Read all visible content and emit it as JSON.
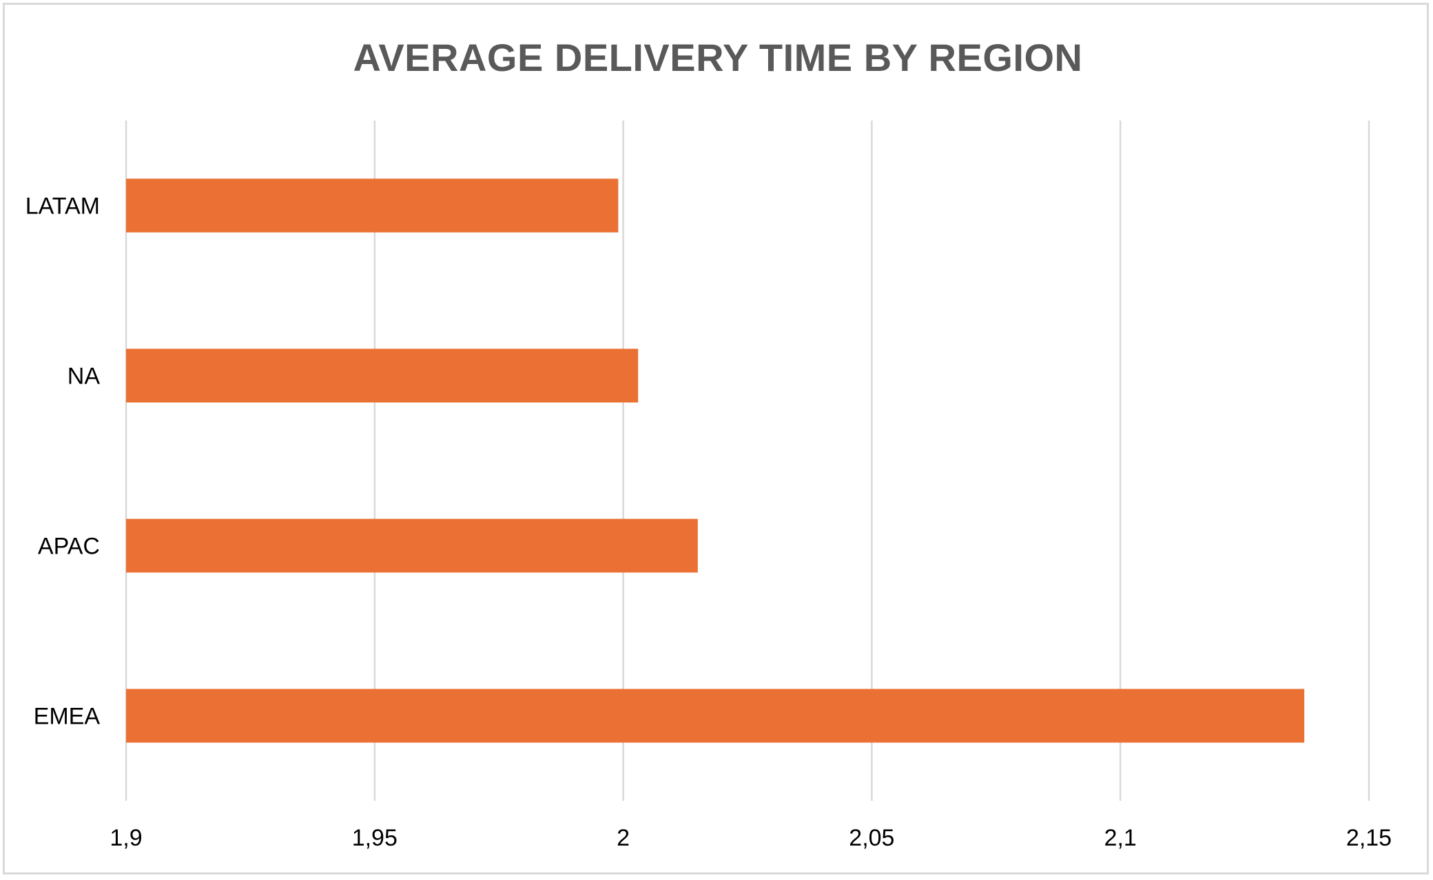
{
  "chart_data": {
    "type": "bar",
    "orientation": "horizontal",
    "title": "AVERAGE DELIVERY TIME BY REGION",
    "xlabel": "",
    "ylabel": "",
    "categories": [
      "LATAM",
      "NA",
      "APAC",
      "EMEA"
    ],
    "values": [
      1.999,
      2.003,
      2.015,
      2.137
    ],
    "xlim": [
      1.9,
      2.15
    ],
    "x_ticks": [
      1.9,
      1.95,
      2.0,
      2.05,
      2.1,
      2.15
    ],
    "x_tick_labels": [
      "1,9",
      "1,95",
      "2",
      "2,05",
      "2,1",
      "2,15"
    ],
    "grid": true,
    "legend": "none",
    "colors": {
      "bar": "#ea7133",
      "grid": "#d9d9d9",
      "title": "#595959"
    }
  }
}
